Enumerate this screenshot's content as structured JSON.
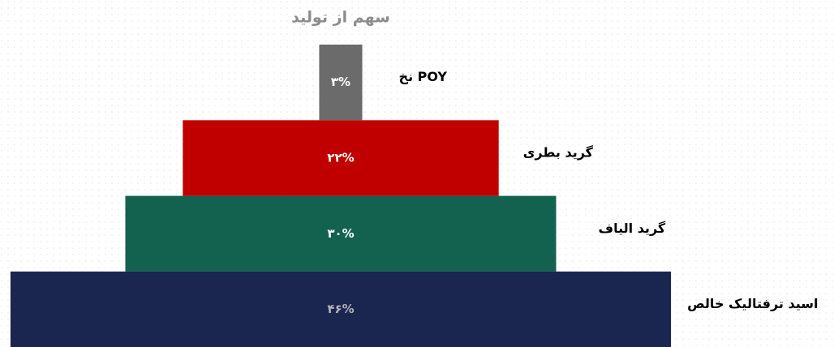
{
  "chart_data": {
    "type": "bar",
    "title": "سهم از تولید",
    "categories": [
      "نخ POY",
      "گرید بطری",
      "گرید الیاف",
      "اسید ترفتالیک خالص"
    ],
    "values": [
      3,
      22,
      30,
      46
    ],
    "value_labels": [
      "۳%",
      "۲۲%",
      "۳۰%",
      "۴۶%"
    ],
    "colors": [
      "#6b6b6b",
      "#c00000",
      "#13614f",
      "#1a2550"
    ]
  }
}
